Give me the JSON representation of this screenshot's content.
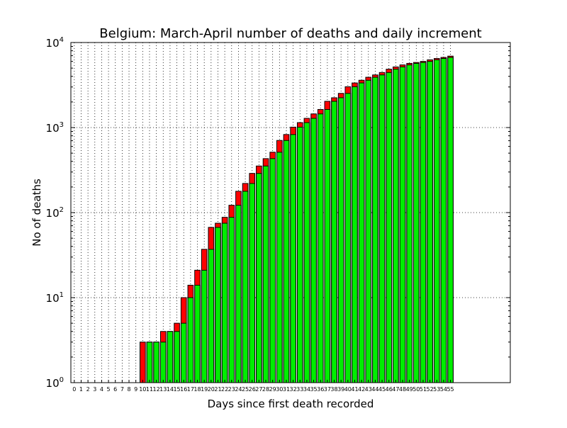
{
  "chart_data": {
    "type": "bar",
    "title": "Belgium: March-April number of deaths and daily increment",
    "xlabel": "Days since first death recorded",
    "ylabel": "No of deaths",
    "yscale": "log",
    "ylim": [
      1,
      10000
    ],
    "yticks": [
      {
        "base": "10",
        "exp": "0"
      },
      {
        "base": "10",
        "exp": "1"
      },
      {
        "base": "10",
        "exp": "2"
      },
      {
        "base": "10",
        "exp": "3"
      },
      {
        "base": "10",
        "exp": "4"
      }
    ],
    "grid": true,
    "categories": [
      "0",
      "1",
      "2",
      "3",
      "4",
      "5",
      "6",
      "7",
      "8",
      "9",
      "10",
      "11",
      "12",
      "13",
      "14",
      "15",
      "16",
      "17",
      "18",
      "19",
      "20",
      "21",
      "22",
      "23",
      "24",
      "25",
      "26",
      "27",
      "28",
      "29",
      "30",
      "31",
      "32",
      "33",
      "34",
      "35",
      "36",
      "37",
      "38",
      "39",
      "40",
      "41",
      "42",
      "43",
      "44",
      "45",
      "46",
      "47",
      "48",
      "49",
      "50",
      "51",
      "52",
      "53",
      "54",
      "55"
    ],
    "series": [
      {
        "color": "#ff0000",
        "values": [
          0,
          0,
          0,
          0,
          0,
          0,
          0,
          0,
          0,
          0,
          3,
          3,
          3,
          4,
          4,
          5,
          10,
          14,
          21,
          37,
          67,
          75,
          88,
          122,
          178,
          220,
          289,
          353,
          431,
          513,
          705,
          828,
          1011,
          1143,
          1283,
          1447,
          1632,
          2035,
          2240,
          2523,
          3019,
          3346,
          3600,
          3903,
          4157,
          4440,
          4857,
          5163,
          5453,
          5683,
          5828,
          5998,
          6262,
          6490,
          6679,
          6917
        ]
      },
      {
        "color": "#00ee00",
        "values": [
          0,
          0,
          0,
          0,
          0,
          0,
          0,
          0,
          0,
          0,
          0,
          3,
          3,
          3,
          4,
          4,
          5,
          10,
          14,
          21,
          37,
          67,
          75,
          88,
          122,
          178,
          220,
          289,
          353,
          431,
          513,
          705,
          828,
          1011,
          1143,
          1283,
          1447,
          1632,
          2035,
          2240,
          2523,
          3019,
          3346,
          3600,
          3903,
          4157,
          4440,
          4857,
          5163,
          5453,
          5683,
          5828,
          5998,
          6262,
          6490,
          6679
        ]
      }
    ]
  }
}
